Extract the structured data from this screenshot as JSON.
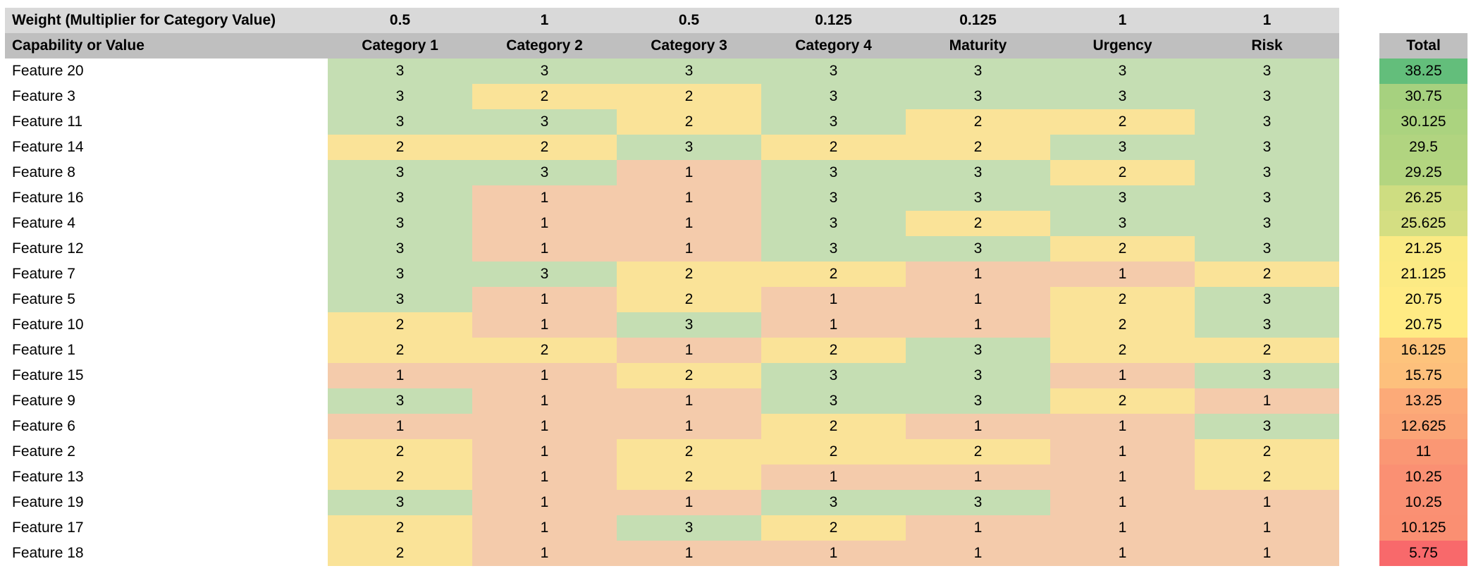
{
  "header": {
    "weight_label": "Weight (Multiplier for Category Value)",
    "weights": [
      "0.5",
      "1",
      "0.5",
      "0.125",
      "0.125",
      "1",
      "1"
    ],
    "capability_label": "Capability or Value",
    "columns": [
      "Category 1",
      "Category 2",
      "Category 3",
      "Category 4",
      "Maturity",
      "Urgency",
      "Risk"
    ],
    "total_label": "Total"
  },
  "colors": {
    "weight_row_bg": "#D9D9D9",
    "header_row_bg": "#BFBFBF",
    "value_colors": {
      "1": "#F4CBAB",
      "2": "#FAE398",
      "3": "#C5DEB3"
    },
    "total_scale": {
      "min": "#F8696B",
      "mid": "#FFEB84",
      "max": "#63BE7B"
    }
  },
  "rows": [
    {
      "label": "Feature 20",
      "values": [
        3,
        3,
        3,
        3,
        3,
        3,
        3
      ],
      "total": "38.25",
      "total_color": "#63BE7B"
    },
    {
      "label": "Feature 3",
      "values": [
        3,
        2,
        2,
        3,
        3,
        3,
        3
      ],
      "total": "30.75",
      "total_color": "#A6D17F"
    },
    {
      "label": "Feature 11",
      "values": [
        3,
        3,
        2,
        3,
        2,
        2,
        3
      ],
      "total": "30.125",
      "total_color": "#ABD37F"
    },
    {
      "label": "Feature 14",
      "values": [
        2,
        2,
        3,
        2,
        2,
        3,
        3
      ],
      "total": "29.5",
      "total_color": "#B1D480"
    },
    {
      "label": "Feature 8",
      "values": [
        3,
        3,
        1,
        3,
        3,
        2,
        3
      ],
      "total": "29.25",
      "total_color": "#B3D580"
    },
    {
      "label": "Feature 16",
      "values": [
        3,
        1,
        1,
        3,
        3,
        3,
        3
      ],
      "total": "26.25",
      "total_color": "#CEDD81"
    },
    {
      "label": "Feature 4",
      "values": [
        3,
        1,
        1,
        3,
        2,
        3,
        3
      ],
      "total": "25.625",
      "total_color": "#D4DE82"
    },
    {
      "label": "Feature 12",
      "values": [
        3,
        1,
        1,
        3,
        3,
        2,
        3
      ],
      "total": "21.25",
      "total_color": "#FAEA84"
    },
    {
      "label": "Feature 7",
      "values": [
        3,
        3,
        2,
        2,
        1,
        1,
        2
      ],
      "total": "21.125",
      "total_color": "#FCEA84"
    },
    {
      "label": "Feature 5",
      "values": [
        3,
        1,
        2,
        1,
        1,
        2,
        3
      ],
      "total": "20.75",
      "total_color": "#FFEB84"
    },
    {
      "label": "Feature 10",
      "values": [
        2,
        1,
        3,
        1,
        1,
        2,
        3
      ],
      "total": "20.75",
      "total_color": "#FFEB84"
    },
    {
      "label": "Feature 1",
      "values": [
        2,
        2,
        1,
        2,
        3,
        2,
        2
      ],
      "total": "16.125",
      "total_color": "#FDC37C"
    },
    {
      "label": "Feature 15",
      "values": [
        1,
        1,
        2,
        3,
        3,
        1,
        3
      ],
      "total": "15.75",
      "total_color": "#FDC07C"
    },
    {
      "label": "Feature 9",
      "values": [
        3,
        1,
        1,
        3,
        3,
        2,
        1
      ],
      "total": "13.25",
      "total_color": "#FCAA78"
    },
    {
      "label": "Feature 6",
      "values": [
        1,
        1,
        1,
        2,
        1,
        1,
        3
      ],
      "total": "12.625",
      "total_color": "#FBA577"
    },
    {
      "label": "Feature 2",
      "values": [
        2,
        1,
        2,
        2,
        2,
        1,
        2
      ],
      "total": "11",
      "total_color": "#FA9774"
    },
    {
      "label": "Feature 13",
      "values": [
        2,
        1,
        2,
        1,
        1,
        1,
        2
      ],
      "total": "10.25",
      "total_color": "#FA9073"
    },
    {
      "label": "Feature 19",
      "values": [
        3,
        1,
        1,
        3,
        3,
        1,
        1
      ],
      "total": "10.25",
      "total_color": "#FA9073"
    },
    {
      "label": "Feature 17",
      "values": [
        2,
        1,
        3,
        2,
        1,
        1,
        1
      ],
      "total": "10.125",
      "total_color": "#FA8F72"
    },
    {
      "label": "Feature 18",
      "values": [
        2,
        1,
        1,
        1,
        1,
        1,
        1
      ],
      "total": "5.75",
      "total_color": "#F8696B"
    }
  ]
}
